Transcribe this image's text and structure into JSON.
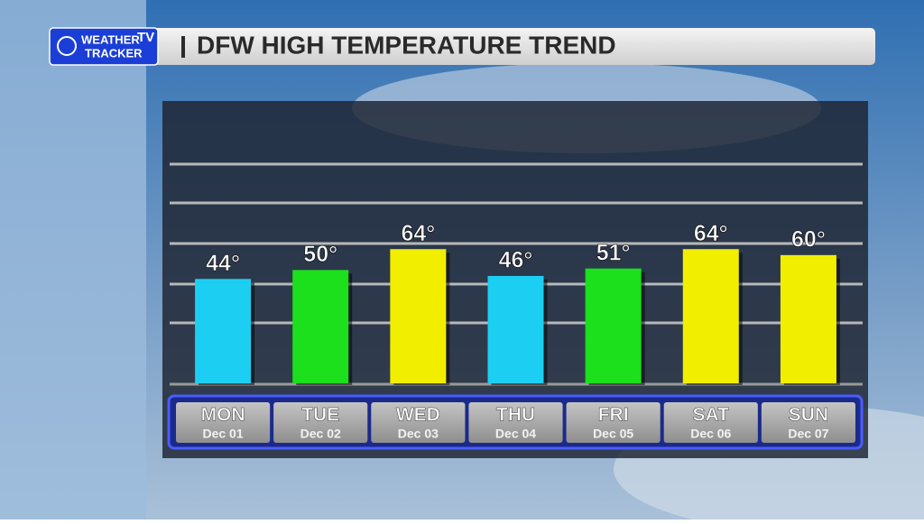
{
  "logo": {
    "line1": "WEATHER",
    "line2": "TRACKER",
    "badge": "TV"
  },
  "chart_data": {
    "type": "bar",
    "title": "DFW HIGH TEMPERATURE TREND",
    "categories": [
      "MON",
      "TUE",
      "WED",
      "THU",
      "FRI",
      "SAT",
      "SUN"
    ],
    "dates": [
      "Dec 01",
      "Dec 02",
      "Dec 03",
      "Dec 04",
      "Dec 05",
      "Dec 06",
      "Dec 07"
    ],
    "values": [
      44,
      50,
      64,
      46,
      51,
      64,
      60
    ],
    "value_labels": [
      "44°",
      "50°",
      "64°",
      "46°",
      "51°",
      "64°",
      "60°"
    ],
    "colors": [
      "#1ccff2",
      "#1be01b",
      "#f2ee00",
      "#1ccff2",
      "#1be01b",
      "#f2ee00",
      "#f2ee00"
    ],
    "ylim": [
      -26,
      121
    ]
  }
}
